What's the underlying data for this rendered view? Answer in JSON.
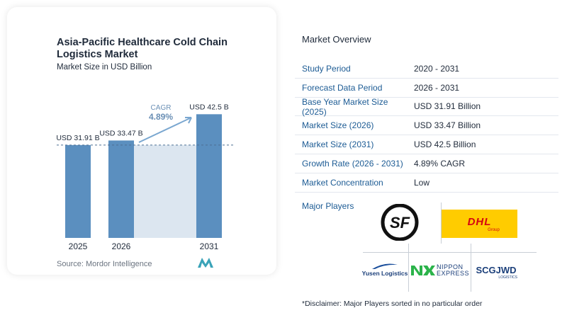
{
  "chart_data": {
    "type": "bar",
    "title": "Asia-Pacific Healthcare Cold Chain Logistics Market",
    "subtitle": "Market Size in USD Billion",
    "categories": [
      "2025",
      "2026",
      "2031"
    ],
    "values": [
      31.91,
      33.47,
      42.5
    ],
    "value_labels": [
      "USD 31.91 B",
      "USD 33.47 B",
      "USD 42.5 B"
    ],
    "cagr_label": "CAGR",
    "cagr_value": "4.89%",
    "bar_color": "#5b8fbf",
    "band_color": "#dce6f0",
    "arrow_color": "#7aa7d0"
  },
  "source": "Source:  Mordor Intelligence",
  "overview": {
    "title": "Market Overview",
    "rows": [
      {
        "label": "Study Period",
        "value": "2020 - 2031"
      },
      {
        "label": "Forecast Data Period",
        "value": "2026 - 2031"
      },
      {
        "label": "Base Year Market Size (2025)",
        "value": "USD 31.91 Billion"
      },
      {
        "label": "Market Size (2026)",
        "value": "USD 33.47 Billion"
      },
      {
        "label": "Market Size (2031)",
        "value": "USD 42.5 Billion"
      },
      {
        "label": "Growth Rate (2026 - 2031)",
        "value": "4.89% CAGR"
      },
      {
        "label": "Market Concentration",
        "value": "Low"
      }
    ],
    "players_label": "Major Players"
  },
  "players": {
    "sf": "SF",
    "dhl": "DHL",
    "dhl_sub": "Group",
    "yusen": "Yusen Logistics",
    "nippon_top": "NIPPON",
    "nippon_bottom": "EXPRESS",
    "scg": "SCGJWD",
    "scg_sub": "LOGISTICS"
  },
  "disclaimer": "*Disclaimer: Major Players sorted in no particular order"
}
